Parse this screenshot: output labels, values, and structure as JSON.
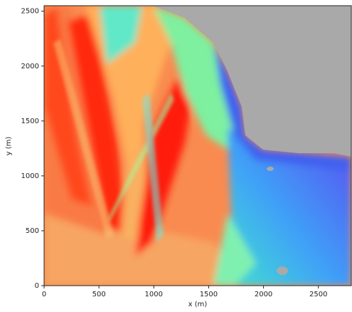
{
  "chart_data": {
    "type": "image",
    "xlabel": "x (m)",
    "ylabel": "y (m)",
    "xlim": [
      0,
      2800
    ],
    "ylim": [
      0,
      2550
    ],
    "xticks": [
      0,
      500,
      1000,
      1500,
      2000,
      2500
    ],
    "yticks": [
      0,
      500,
      1000,
      1500,
      2000,
      2500
    ]
  }
}
